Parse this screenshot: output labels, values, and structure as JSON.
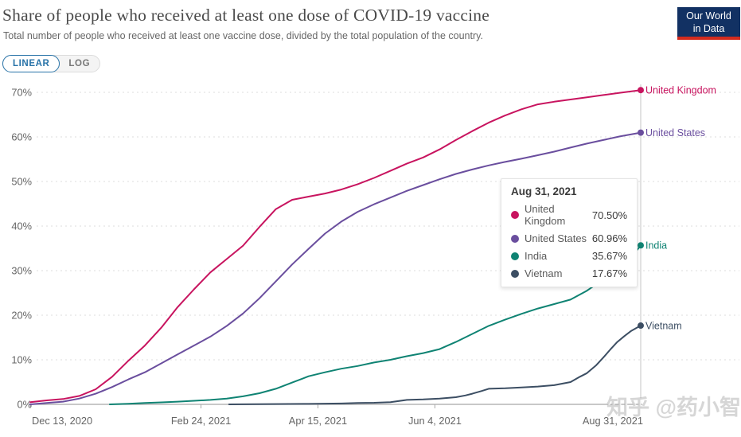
{
  "header": {
    "title": "Share of people who received at least one dose of COVID-19 vaccine",
    "subtitle": "Total number of people who received at least one vaccine dose, divided by the total population of the country.",
    "logo": {
      "line1": "Our World",
      "line2": "in Data",
      "bg_color": "#123163",
      "bar_color": "#D32B1E"
    }
  },
  "controls": {
    "linear_label": "LINEAR",
    "log_label": "LOG",
    "active": "LINEAR",
    "accent_color": "#2873A8"
  },
  "tooltip": {
    "date": "Aug 31, 2021",
    "rows": [
      {
        "label": "United Kingdom",
        "value": "70.50%",
        "color": "#C8145F"
      },
      {
        "label": "United States",
        "value": "60.96%",
        "color": "#6A4E9E"
      },
      {
        "label": "India",
        "value": "35.67%",
        "color": "#0F8373"
      },
      {
        "label": "Vietnam",
        "value": "17.67%",
        "color": "#3C4E63"
      }
    ]
  },
  "watermark": "知乎 @药小智",
  "chart_data": {
    "type": "line",
    "title": "Share of people who received at least one dose of COVID-19 vaccine",
    "xlabel": "",
    "ylabel": "",
    "ylim": [
      0,
      70
    ],
    "x_range": [
      "2020-12-13",
      "2021-08-31"
    ],
    "grid": "dashed-horizontal",
    "legend": "end-of-line-labels",
    "yticks": [
      {
        "value": 0,
        "label": "0%"
      },
      {
        "value": 10,
        "label": "10%"
      },
      {
        "value": 20,
        "label": "20%"
      },
      {
        "value": 30,
        "label": "30%"
      },
      {
        "value": 40,
        "label": "40%"
      },
      {
        "value": 50,
        "label": "50%"
      },
      {
        "value": 60,
        "label": "60%"
      },
      {
        "value": 70,
        "label": "70%"
      }
    ],
    "xticks": [
      {
        "date": "2020-12-13",
        "label": "Dec 13, 2020",
        "align": "start"
      },
      {
        "date": "2021-02-24",
        "label": "Feb 24, 2021",
        "align": "middle"
      },
      {
        "date": "2021-04-15",
        "label": "Apr 15, 2021",
        "align": "middle"
      },
      {
        "date": "2021-06-04",
        "label": "Jun 4, 2021",
        "align": "middle"
      },
      {
        "date": "2021-08-31",
        "label": "Aug 31, 2021",
        "align": "end"
      }
    ],
    "hover": {
      "date": "2021-08-31",
      "label": "Aug 31, 2021"
    },
    "series": [
      {
        "name": "United Kingdom",
        "color": "#C8145F",
        "end_value": 70.5,
        "points": [
          [
            "2020-12-13",
            0.5
          ],
          [
            "2020-12-20",
            0.9
          ],
          [
            "2020-12-27",
            1.2
          ],
          [
            "2021-01-03",
            1.9
          ],
          [
            "2021-01-10",
            3.4
          ],
          [
            "2021-01-17",
            6.2
          ],
          [
            "2021-01-24",
            9.8
          ],
          [
            "2021-01-31",
            13.2
          ],
          [
            "2021-02-07",
            17.2
          ],
          [
            "2021-02-14",
            21.8
          ],
          [
            "2021-02-21",
            25.8
          ],
          [
            "2021-02-28",
            29.6
          ],
          [
            "2021-03-07",
            32.6
          ],
          [
            "2021-03-14",
            35.6
          ],
          [
            "2021-03-21",
            39.8
          ],
          [
            "2021-03-28",
            43.8
          ],
          [
            "2021-04-04",
            45.9
          ],
          [
            "2021-04-11",
            46.6
          ],
          [
            "2021-04-18",
            47.3
          ],
          [
            "2021-04-25",
            48.2
          ],
          [
            "2021-05-02",
            49.4
          ],
          [
            "2021-05-09",
            50.8
          ],
          [
            "2021-05-16",
            52.4
          ],
          [
            "2021-05-23",
            54.0
          ],
          [
            "2021-05-30",
            55.4
          ],
          [
            "2021-06-06",
            57.2
          ],
          [
            "2021-06-13",
            59.3
          ],
          [
            "2021-06-20",
            61.3
          ],
          [
            "2021-06-27",
            63.2
          ],
          [
            "2021-07-04",
            64.8
          ],
          [
            "2021-07-11",
            66.2
          ],
          [
            "2021-07-18",
            67.3
          ],
          [
            "2021-07-25",
            67.9
          ],
          [
            "2021-08-01",
            68.4
          ],
          [
            "2021-08-08",
            68.9
          ],
          [
            "2021-08-15",
            69.4
          ],
          [
            "2021-08-22",
            69.9
          ],
          [
            "2021-08-31",
            70.5
          ]
        ]
      },
      {
        "name": "United States",
        "color": "#6A4E9E",
        "end_value": 60.96,
        "points": [
          [
            "2020-12-13",
            0.0
          ],
          [
            "2020-12-20",
            0.3
          ],
          [
            "2020-12-27",
            0.6
          ],
          [
            "2021-01-03",
            1.3
          ],
          [
            "2021-01-10",
            2.4
          ],
          [
            "2021-01-17",
            3.9
          ],
          [
            "2021-01-24",
            5.6
          ],
          [
            "2021-01-31",
            7.2
          ],
          [
            "2021-02-07",
            9.2
          ],
          [
            "2021-02-14",
            11.2
          ],
          [
            "2021-02-21",
            13.2
          ],
          [
            "2021-02-28",
            15.2
          ],
          [
            "2021-03-07",
            17.6
          ],
          [
            "2021-03-14",
            20.4
          ],
          [
            "2021-03-21",
            23.8
          ],
          [
            "2021-03-28",
            27.6
          ],
          [
            "2021-04-04",
            31.4
          ],
          [
            "2021-04-11",
            34.9
          ],
          [
            "2021-04-18",
            38.3
          ],
          [
            "2021-04-25",
            41.0
          ],
          [
            "2021-05-02",
            43.2
          ],
          [
            "2021-05-09",
            44.9
          ],
          [
            "2021-05-16",
            46.4
          ],
          [
            "2021-05-23",
            47.9
          ],
          [
            "2021-05-30",
            49.2
          ],
          [
            "2021-06-06",
            50.5
          ],
          [
            "2021-06-13",
            51.7
          ],
          [
            "2021-06-20",
            52.7
          ],
          [
            "2021-06-27",
            53.6
          ],
          [
            "2021-07-04",
            54.4
          ],
          [
            "2021-07-11",
            55.1
          ],
          [
            "2021-07-18",
            55.9
          ],
          [
            "2021-07-25",
            56.7
          ],
          [
            "2021-08-01",
            57.6
          ],
          [
            "2021-08-08",
            58.5
          ],
          [
            "2021-08-15",
            59.3
          ],
          [
            "2021-08-22",
            60.1
          ],
          [
            "2021-08-31",
            60.96
          ]
        ]
      },
      {
        "name": "India",
        "color": "#0F8373",
        "end_value": 35.67,
        "points": [
          [
            "2021-01-16",
            0.0
          ],
          [
            "2021-01-24",
            0.15
          ],
          [
            "2021-01-31",
            0.3
          ],
          [
            "2021-02-07",
            0.45
          ],
          [
            "2021-02-14",
            0.6
          ],
          [
            "2021-02-21",
            0.8
          ],
          [
            "2021-02-28",
            1.0
          ],
          [
            "2021-03-07",
            1.3
          ],
          [
            "2021-03-14",
            1.8
          ],
          [
            "2021-03-21",
            2.5
          ],
          [
            "2021-03-28",
            3.5
          ],
          [
            "2021-04-04",
            4.9
          ],
          [
            "2021-04-11",
            6.3
          ],
          [
            "2021-04-18",
            7.2
          ],
          [
            "2021-04-25",
            8.0
          ],
          [
            "2021-05-02",
            8.6
          ],
          [
            "2021-05-09",
            9.4
          ],
          [
            "2021-05-16",
            10.0
          ],
          [
            "2021-05-23",
            10.8
          ],
          [
            "2021-05-30",
            11.5
          ],
          [
            "2021-06-06",
            12.4
          ],
          [
            "2021-06-13",
            14.0
          ],
          [
            "2021-06-20",
            15.8
          ],
          [
            "2021-06-27",
            17.6
          ],
          [
            "2021-07-04",
            19.0
          ],
          [
            "2021-07-11",
            20.3
          ],
          [
            "2021-07-18",
            21.5
          ],
          [
            "2021-07-25",
            22.5
          ],
          [
            "2021-08-01",
            23.5
          ],
          [
            "2021-08-08",
            25.5
          ],
          [
            "2021-08-15",
            28.0
          ],
          [
            "2021-08-22",
            31.0
          ],
          [
            "2021-08-27",
            33.0
          ],
          [
            "2021-08-31",
            35.67
          ]
        ]
      },
      {
        "name": "Vietnam",
        "color": "#3C4E63",
        "end_value": 17.67,
        "points": [
          [
            "2021-03-08",
            0.0
          ],
          [
            "2021-03-21",
            0.05
          ],
          [
            "2021-04-11",
            0.1
          ],
          [
            "2021-04-25",
            0.2
          ],
          [
            "2021-05-02",
            0.3
          ],
          [
            "2021-05-09",
            0.35
          ],
          [
            "2021-05-16",
            0.5
          ],
          [
            "2021-05-23",
            1.0
          ],
          [
            "2021-05-30",
            1.1
          ],
          [
            "2021-06-06",
            1.3
          ],
          [
            "2021-06-13",
            1.6
          ],
          [
            "2021-06-17",
            2.0
          ],
          [
            "2021-06-20",
            2.4
          ],
          [
            "2021-06-24",
            3.0
          ],
          [
            "2021-06-27",
            3.5
          ],
          [
            "2021-07-04",
            3.6
          ],
          [
            "2021-07-11",
            3.8
          ],
          [
            "2021-07-18",
            4.0
          ],
          [
            "2021-07-25",
            4.3
          ],
          [
            "2021-08-01",
            5.0
          ],
          [
            "2021-08-05",
            6.2
          ],
          [
            "2021-08-08",
            7.0
          ],
          [
            "2021-08-12",
            8.8
          ],
          [
            "2021-08-15",
            10.5
          ],
          [
            "2021-08-18",
            12.3
          ],
          [
            "2021-08-21",
            14.0
          ],
          [
            "2021-08-24",
            15.3
          ],
          [
            "2021-08-27",
            16.5
          ],
          [
            "2021-08-31",
            17.67
          ]
        ]
      }
    ]
  }
}
